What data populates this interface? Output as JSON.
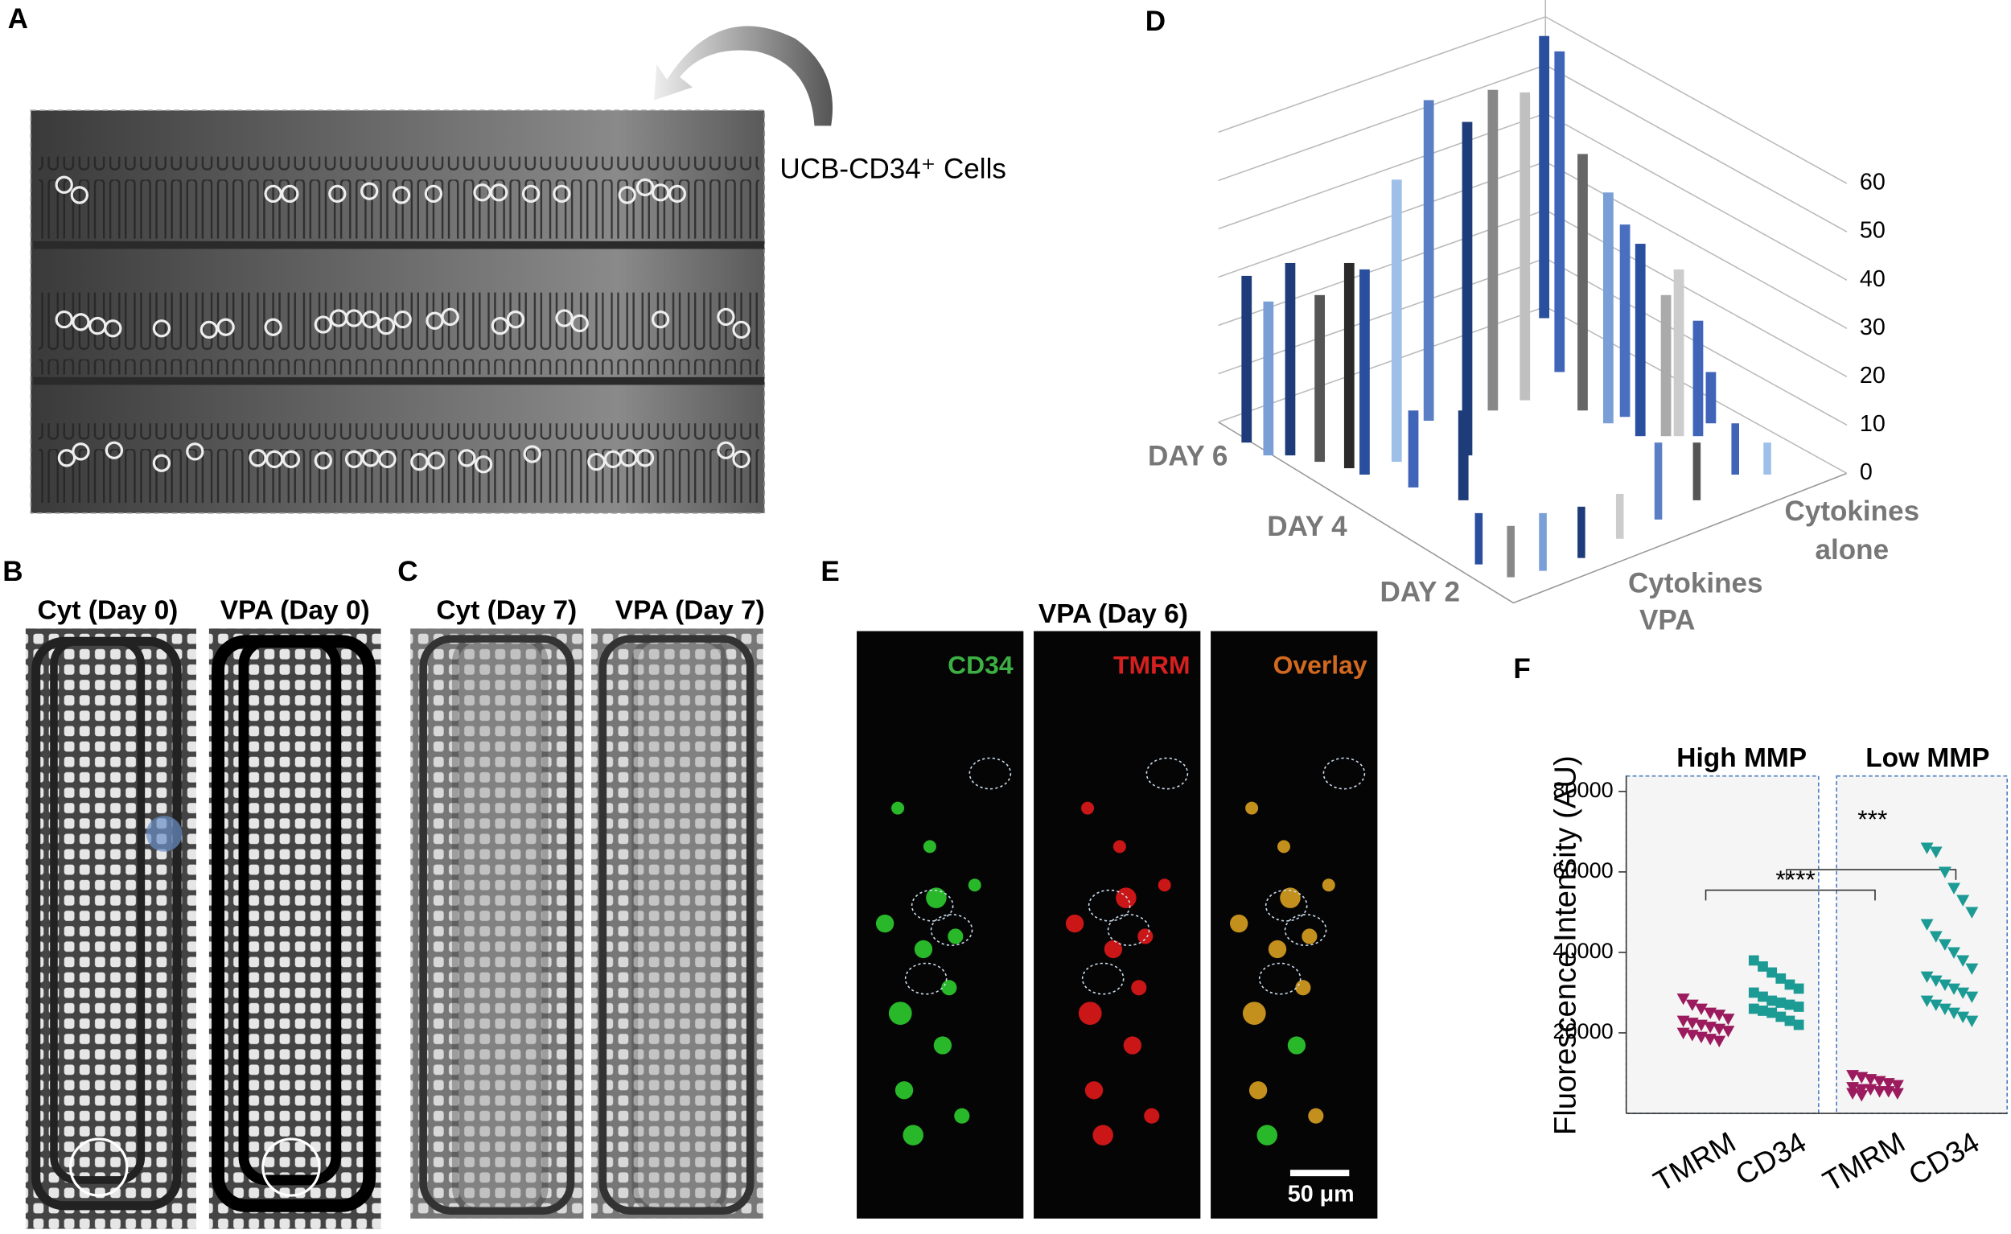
{
  "panels": {
    "a": {
      "label": "A",
      "annotation": "UCB-CD34⁺ Cells"
    },
    "b": {
      "label": "B",
      "images": [
        "Cyt (Day 0)",
        "VPA (Day 0)"
      ]
    },
    "c": {
      "label": "C",
      "images": [
        "Cyt (Day 7)",
        "VPA (Day 7)"
      ]
    },
    "d": {
      "label": "D",
      "zlim": [
        0,
        60
      ],
      "zticks": [
        0,
        10,
        20,
        30,
        40,
        50,
        60
      ],
      "days": [
        "DAY 6",
        "DAY 4",
        "DAY 2"
      ],
      "conditions": [
        [
          "Cytokines",
          "alone"
        ],
        [
          "Cytokines",
          "VPA"
        ]
      ]
    },
    "e": {
      "label": "E",
      "title": "VPA (Day 6)",
      "channels": [
        "CD34",
        "TMRM",
        "Overlay"
      ],
      "channel_colors": [
        "#3cb043",
        "#d62020",
        "#d2691e"
      ],
      "scale_bar": "50 μm"
    }
  },
  "chart_data": {
    "type": "dot",
    "label": "F",
    "ylabel": "Fluorescence Intensity (AU)",
    "categories": [
      "TMRM",
      "CD34",
      "TMRM",
      "CD34"
    ],
    "groups": [
      "High MMP",
      "Low MMP"
    ],
    "significance": [
      "***",
      "****"
    ],
    "colors": [
      "#9b1b5e",
      "#1c9a94",
      "#9b1b5e",
      "#1c9a94"
    ],
    "markers": [
      "triangle",
      "square",
      "triangle",
      "triangle"
    ],
    "values": [
      [
        28500,
        27000,
        26000,
        25000,
        24500,
        23500,
        23000,
        22500,
        22000,
        21500,
        21000,
        20500,
        20000,
        19500,
        19000,
        18500,
        18000
      ],
      [
        38000,
        36500,
        35000,
        33500,
        32000,
        31000,
        30000,
        29000,
        28000,
        27500,
        27000,
        26500,
        26000,
        25500,
        25000,
        24000,
        23000,
        22000
      ],
      [
        9500,
        9000,
        8500,
        8000,
        7500,
        7000,
        6500,
        6000,
        6000,
        5500,
        5500,
        5000,
        5000,
        4500
      ],
      [
        66000,
        65000,
        60000,
        56000,
        53000,
        50000,
        47000,
        44000,
        42000,
        40000,
        38000,
        36000,
        34000,
        33000,
        32000,
        31000,
        30000,
        29000,
        28000,
        27000,
        26000,
        25000,
        24000,
        23000
      ]
    ],
    "ylim": [
      0,
      84000
    ],
    "yticks": [
      20000,
      40000,
      60000,
      80000
    ]
  }
}
